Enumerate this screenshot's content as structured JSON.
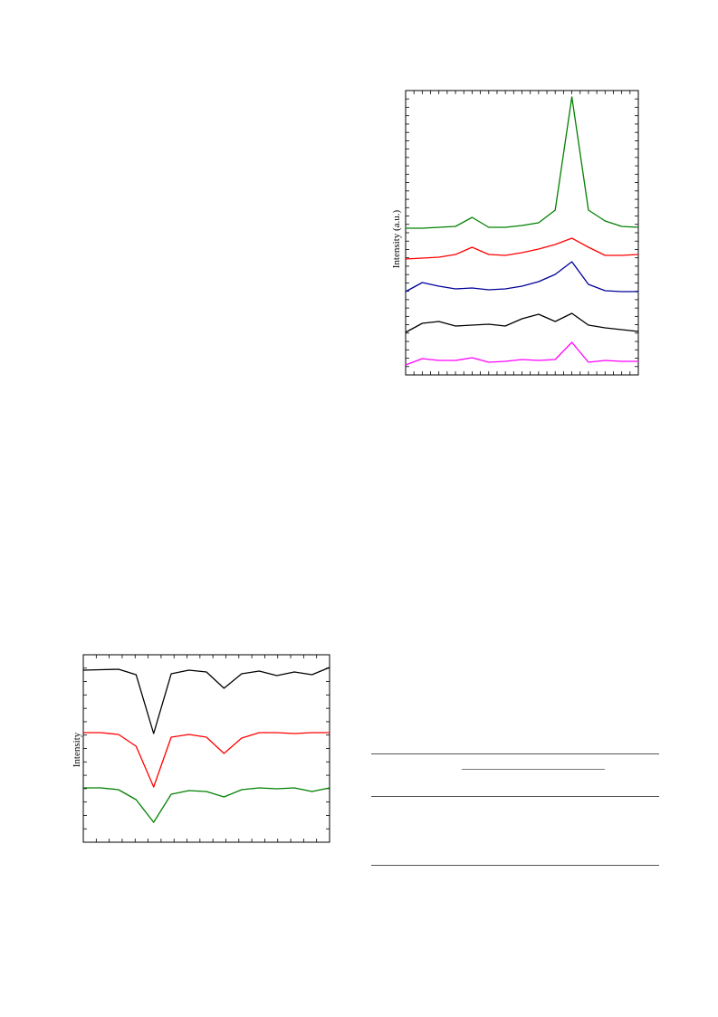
{
  "figures": {
    "xrd": {
      "ylabel": "Intensity (a.u.)",
      "colors": [
        "#008000",
        "#ff0000",
        "#000099",
        "#000000",
        "#ff00ff"
      ]
    },
    "ir": {
      "ylabel": "Intensity",
      "colors": [
        "#000000",
        "#ff0000",
        "#008000"
      ]
    }
  },
  "chart_data": [
    {
      "type": "line",
      "ylabel": "Intensity (a.u.)",
      "grid": false,
      "legend": "none",
      "series": [
        {
          "color": "#008000",
          "y": [
            0.0,
            0.0,
            0.1,
            0.2,
            1.2,
            0.1,
            0.1,
            0.3,
            0.6,
            2.0,
            14.5,
            2.0,
            0.8,
            0.2,
            0.1
          ]
        },
        {
          "color": "#ff0000",
          "y": [
            0.0,
            0.1,
            0.2,
            0.5,
            1.3,
            0.5,
            0.4,
            0.7,
            1.1,
            1.6,
            2.3,
            1.3,
            0.4,
            0.4,
            0.5
          ]
        },
        {
          "color": "#000099",
          "y": [
            0.0,
            1.0,
            0.6,
            0.3,
            0.4,
            0.2,
            0.3,
            0.6,
            1.1,
            1.9,
            3.3,
            0.8,
            0.1,
            0.0,
            0.0
          ]
        },
        {
          "color": "#000000",
          "y": [
            0.0,
            1.0,
            1.2,
            0.7,
            0.8,
            0.9,
            0.7,
            1.5,
            2.0,
            1.2,
            2.1,
            0.8,
            0.5,
            0.3,
            0.1
          ]
        },
        {
          "color": "#ff00ff",
          "y": [
            0.0,
            0.7,
            0.5,
            0.5,
            0.8,
            0.3,
            0.4,
            0.6,
            0.5,
            0.6,
            2.5,
            0.3,
            0.5,
            0.4,
            0.4
          ]
        }
      ]
    },
    {
      "type": "line",
      "ylabel": "Intensity",
      "grid": false,
      "legend": "none",
      "series": [
        {
          "color": "#000000",
          "y": [
            0.0,
            0.05,
            0.1,
            -0.5,
            -7.0,
            -0.4,
            0.0,
            -0.2,
            -2.0,
            -0.4,
            -0.1,
            -0.6,
            -0.2,
            -0.5,
            0.3
          ]
        },
        {
          "color": "#ff0000",
          "y": [
            0.0,
            0.0,
            -0.2,
            -1.5,
            -6.0,
            -0.5,
            -0.2,
            -0.5,
            -2.3,
            -0.6,
            0.0,
            0.0,
            -0.1,
            0.0,
            0.0
          ]
        },
        {
          "color": "#008000",
          "y": [
            0.0,
            0.0,
            -0.2,
            -1.3,
            -3.8,
            -0.7,
            -0.3,
            -0.4,
            -1.0,
            -0.2,
            0.0,
            -0.1,
            0.0,
            -0.4,
            0.0
          ]
        }
      ]
    }
  ]
}
